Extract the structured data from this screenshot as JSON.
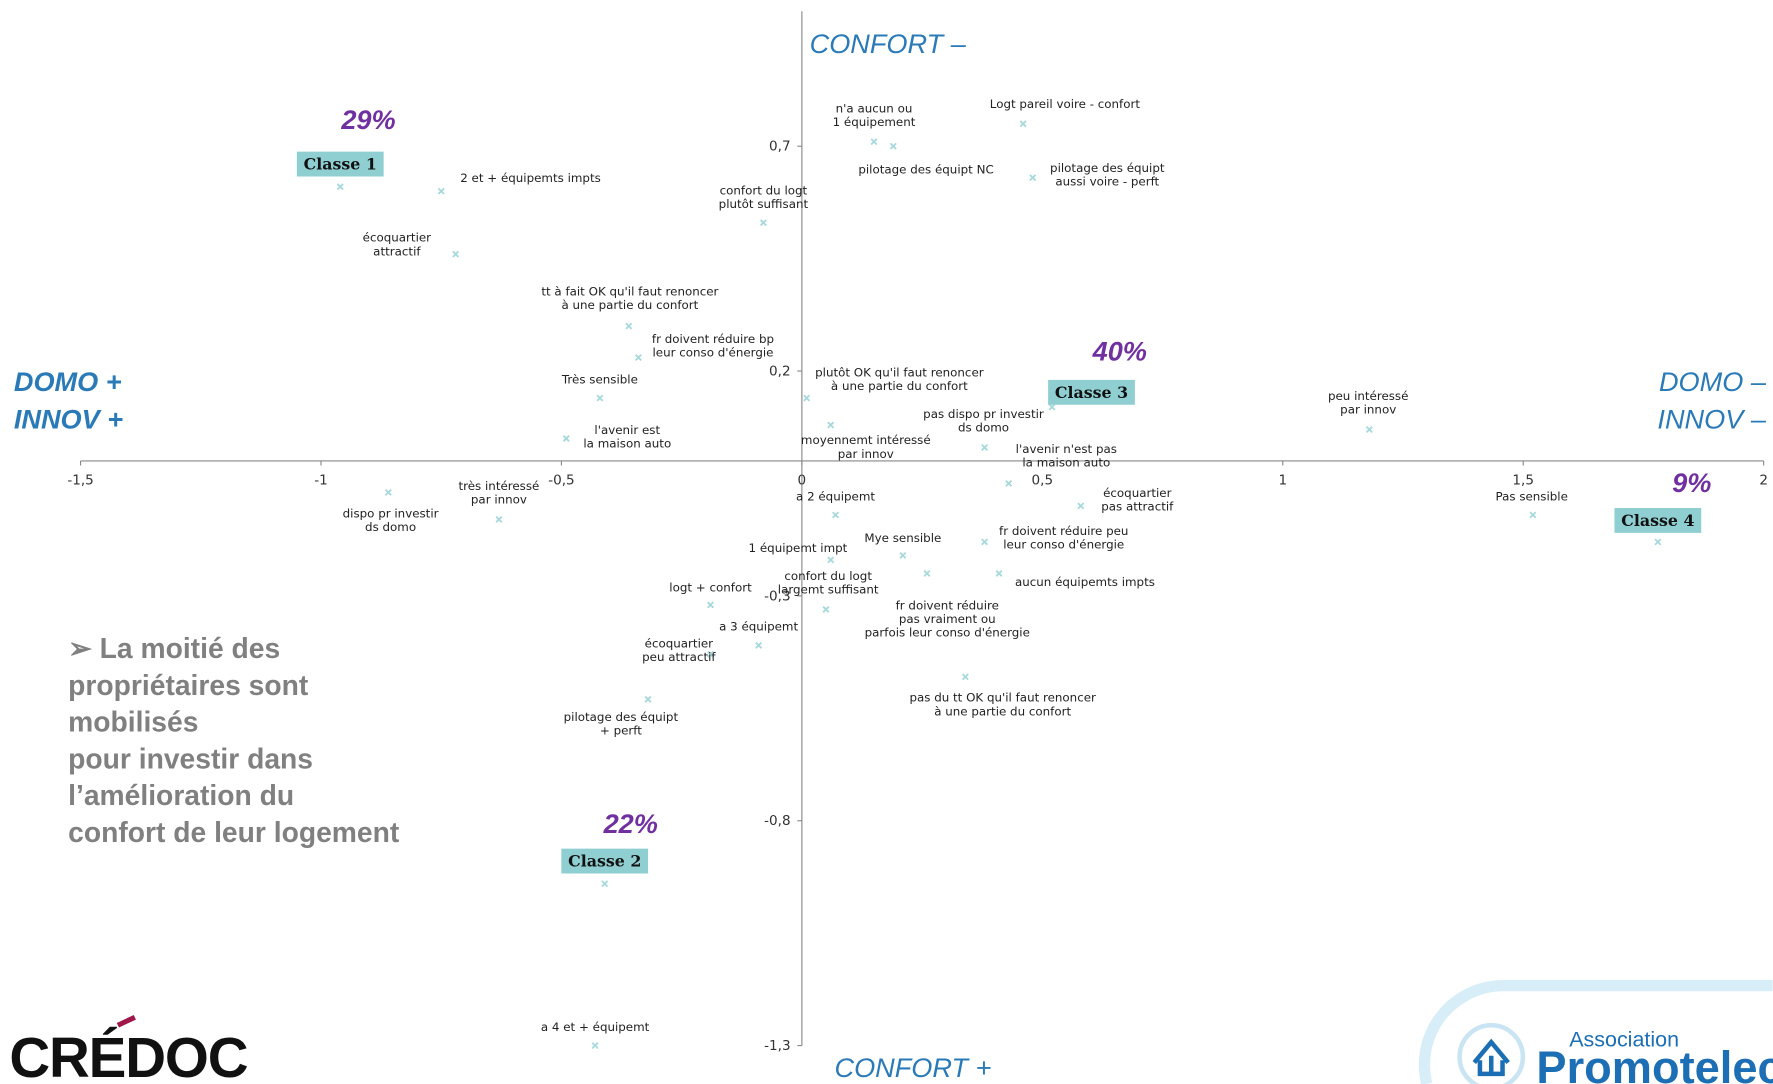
{
  "chart_data": {
    "type": "scatter",
    "xlim": [
      -1.5,
      2
    ],
    "ylim": [
      -1.3,
      1.0
    ],
    "xticks": [
      {
        "value": -1.5,
        "label": "-1,5"
      },
      -1,
      {
        "value": -0.5,
        "label": "-0,5"
      },
      0,
      {
        "value": 0.5,
        "label": "0,5"
      },
      1,
      {
        "value": 1.5,
        "label": "1,5"
      },
      2
    ],
    "yticks": [
      {
        "value": 0.7,
        "label": "0,7"
      },
      {
        "value": 0.2,
        "label": "0,2"
      },
      {
        "value": -0.3,
        "label": "-0,3"
      },
      {
        "value": -0.8,
        "label": "-0,8"
      },
      {
        "value": -1.3,
        "label": "-1,3"
      }
    ],
    "axis_labels": {
      "top": "CONFORT –",
      "bottom": "CONFORT +",
      "left": [
        "DOMO +",
        "INNOV +"
      ],
      "right": [
        "DOMO –",
        "INNOV –"
      ]
    },
    "color": "#a6d9db",
    "points": [
      {
        "label": [
          "2 et + équipemts impts"
        ],
        "x": -0.75,
        "y": 0.6
      },
      {
        "label": [
          "écoquartier",
          "attractif"
        ],
        "x": -0.72,
        "y": 0.46
      },
      {
        "label": [
          "confort du logt",
          "plutôt suffisant"
        ],
        "x": -0.08,
        "y": 0.53
      },
      {
        "label": [
          "n'a aucun ou",
          "1 équipement"
        ],
        "x": 0.15,
        "y": 0.71
      },
      {
        "label": [
          "pilotage des équipt NC"
        ],
        "x": 0.19,
        "y": 0.7
      },
      {
        "label": [
          "Logt pareil voire - confort"
        ],
        "x": 0.46,
        "y": 0.75
      },
      {
        "label": [
          "pilotage des équipt",
          "aussi voire - perft"
        ],
        "x": 0.48,
        "y": 0.63
      },
      {
        "label": [
          "tt à fait OK qu'il faut renoncer",
          "à une partie du confort"
        ],
        "x": -0.36,
        "y": 0.3
      },
      {
        "label": [
          "fr doivent réduire bp",
          "leur conso d'énergie"
        ],
        "x": -0.34,
        "y": 0.23
      },
      {
        "label": [
          "Très sensible"
        ],
        "x": -0.42,
        "y": 0.14
      },
      {
        "label": [
          "l'avenir est",
          "la maison auto"
        ],
        "x": -0.49,
        "y": 0.05
      },
      {
        "label": [
          "plutôt OK qu'il faut renoncer",
          "à une partie du confort"
        ],
        "x": 0.01,
        "y": 0.14
      },
      {
        "label": [
          "moyennemt intéressé",
          "par innov"
        ],
        "x": 0.06,
        "y": 0.08
      },
      {
        "label": [
          "pas dispo pr investir",
          "ds domo"
        ],
        "x": 0.38,
        "y": 0.03
      },
      {
        "label": [
          "l'avenir n'est pas",
          "la maison auto"
        ],
        "x": 0.43,
        "y": -0.05
      },
      {
        "label": [
          "peu intéressé",
          "par innov"
        ],
        "x": 1.18,
        "y": 0.07
      },
      {
        "label": [
          "Pas sensible"
        ],
        "x": 1.52,
        "y": -0.12
      },
      {
        "label": [
          "écoquartier",
          "pas attractif"
        ],
        "x": 0.58,
        "y": -0.1
      },
      {
        "label": [
          "a 2 équipemt"
        ],
        "x": 0.07,
        "y": -0.12
      },
      {
        "label": [
          "Mye sensible"
        ],
        "x": 0.21,
        "y": -0.21
      },
      {
        "label": [
          "fr doivent réduire peu",
          "leur conso d'énergie"
        ],
        "x": 0.38,
        "y": -0.18
      },
      {
        "label": [
          "1 équipemt impt"
        ],
        "x": 0.06,
        "y": -0.22
      },
      {
        "label": [
          "confort du logt",
          "largemt suffisant"
        ],
        "x": 0.05,
        "y": -0.33
      },
      {
        "label": [
          "logt + confort"
        ],
        "x": -0.19,
        "y": -0.32
      },
      {
        "label": [
          "a 3 équipemt"
        ],
        "x": -0.09,
        "y": -0.41
      },
      {
        "label": [
          "fr doivent réduire",
          "pas vraiment ou",
          "parfois leur conso d'énergie"
        ],
        "x": 0.26,
        "y": -0.25
      },
      {
        "label": [
          "aucun équipemts impts"
        ],
        "x": 0.41,
        "y": -0.25
      },
      {
        "label": [
          "pas du tt OK qu'il faut renoncer",
          "à une partie du confort"
        ],
        "x": 0.34,
        "y": -0.48
      },
      {
        "label": [
          "écoquartier",
          "peu attractif"
        ],
        "x": -0.19,
        "y": -0.43
      },
      {
        "label": [
          "pilotage des équipt",
          "+ perft"
        ],
        "x": -0.32,
        "y": -0.53
      },
      {
        "label": [
          "a 4 et + équipemt"
        ],
        "x": -0.43,
        "y": -1.3
      },
      {
        "label": [
          "dispo pr investir",
          "ds domo"
        ],
        "x": -0.86,
        "y": -0.07
      },
      {
        "label": [
          "très intéressé",
          "par innov"
        ],
        "x": -0.63,
        "y": -0.13
      }
    ],
    "classes": [
      {
        "name": "Classe 1",
        "share": "29%",
        "x": -0.96,
        "y": 0.61
      },
      {
        "name": "Classe 2",
        "share": "22%",
        "x": -0.41,
        "y": -0.94
      },
      {
        "name": "Classe 3",
        "share": "40%",
        "x": 0.52,
        "y": 0.12
      },
      {
        "name": "Classe 4",
        "share": "9%",
        "x": 1.78,
        "y": -0.18
      }
    ]
  },
  "note": [
    "➢ La moitié des",
    "propriétaires sont",
    "mobilisés",
    "pour investir dans",
    "l’amélioration du",
    "confort de leur logement"
  ],
  "logos": {
    "left": "CRÉDOC",
    "right_small": "Association",
    "right": "Promotelec"
  }
}
